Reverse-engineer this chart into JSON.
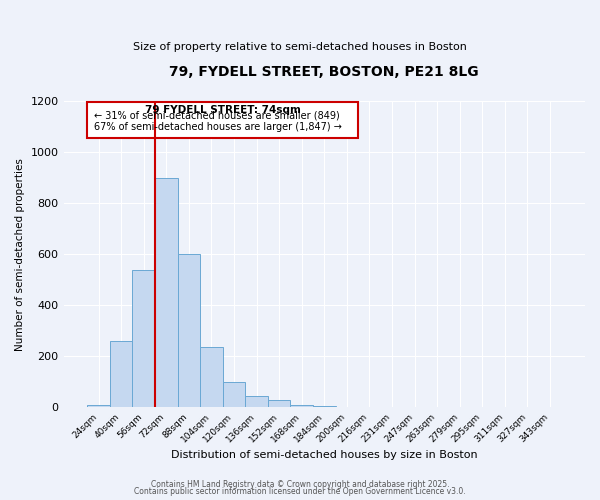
{
  "title": "79, FYDELL STREET, BOSTON, PE21 8LG",
  "subtitle": "Size of property relative to semi-detached houses in Boston",
  "xlabel": "Distribution of semi-detached houses by size in Boston",
  "ylabel": "Number of semi-detached properties",
  "bar_labels": [
    "24sqm",
    "40sqm",
    "56sqm",
    "72sqm",
    "88sqm",
    "104sqm",
    "120sqm",
    "136sqm",
    "152sqm",
    "168sqm",
    "184sqm",
    "200sqm",
    "216sqm",
    "231sqm",
    "247sqm",
    "263sqm",
    "279sqm",
    "295sqm",
    "311sqm",
    "327sqm",
    "343sqm"
  ],
  "bar_values": [
    10,
    260,
    540,
    900,
    600,
    235,
    100,
    45,
    30,
    8,
    5,
    0,
    0,
    0,
    0,
    0,
    0,
    0,
    0,
    0,
    0
  ],
  "bar_color": "#c5d8f0",
  "bar_edge_color": "#6aa8d4",
  "bar_width": 1.0,
  "ylim": [
    0,
    1200
  ],
  "yticks": [
    0,
    200,
    400,
    600,
    800,
    1000,
    1200
  ],
  "vline_color": "#cc0000",
  "annotation_title": "79 FYDELL STREET: 74sqm",
  "annotation_line1": "← 31% of semi-detached houses are smaller (849)",
  "annotation_line2": "67% of semi-detached houses are larger (1,847) →",
  "annotation_box_color": "#cc0000",
  "bg_color": "#eef2fa",
  "grid_color": "#ffffff",
  "footer1": "Contains HM Land Registry data © Crown copyright and database right 2025.",
  "footer2": "Contains public sector information licensed under the Open Government Licence v3.0."
}
